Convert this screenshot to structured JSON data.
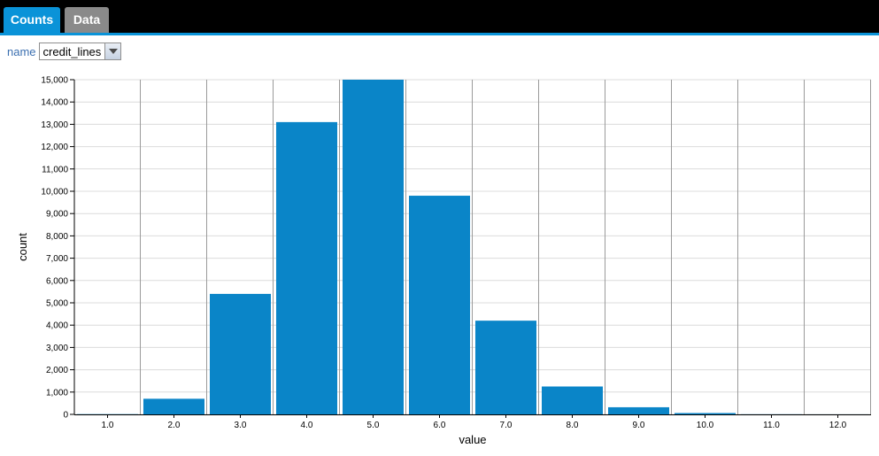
{
  "tabs": [
    {
      "label": "Counts",
      "active": true
    },
    {
      "label": "Data",
      "active": false
    }
  ],
  "selector": {
    "label": "name",
    "value": "credit_lines"
  },
  "colors": {
    "bar": "#0a85c8",
    "accent": "#0a93d8"
  },
  "chart_data": {
    "type": "bar",
    "categories": [
      "1.0",
      "2.0",
      "3.0",
      "4.0",
      "5.0",
      "6.0",
      "7.0",
      "8.0",
      "9.0",
      "10.0",
      "11.0",
      "12.0"
    ],
    "values": [
      10,
      700,
      5400,
      13100,
      15100,
      9800,
      4200,
      1250,
      320,
      60,
      5,
      2
    ],
    "xlabel": "value",
    "ylabel": "count",
    "ylim": [
      0,
      15000
    ],
    "yticks": [
      0,
      1000,
      2000,
      3000,
      4000,
      5000,
      6000,
      7000,
      8000,
      9000,
      10000,
      11000,
      12000,
      13000,
      14000,
      15000
    ],
    "ytick_labels": [
      "0",
      "1,000",
      "2,000",
      "3,000",
      "4,000",
      "5,000",
      "6,000",
      "7,000",
      "8,000",
      "9,000",
      "10,000",
      "11,000",
      "12,000",
      "13,000",
      "14,000",
      "15,000"
    ],
    "grid": true
  }
}
